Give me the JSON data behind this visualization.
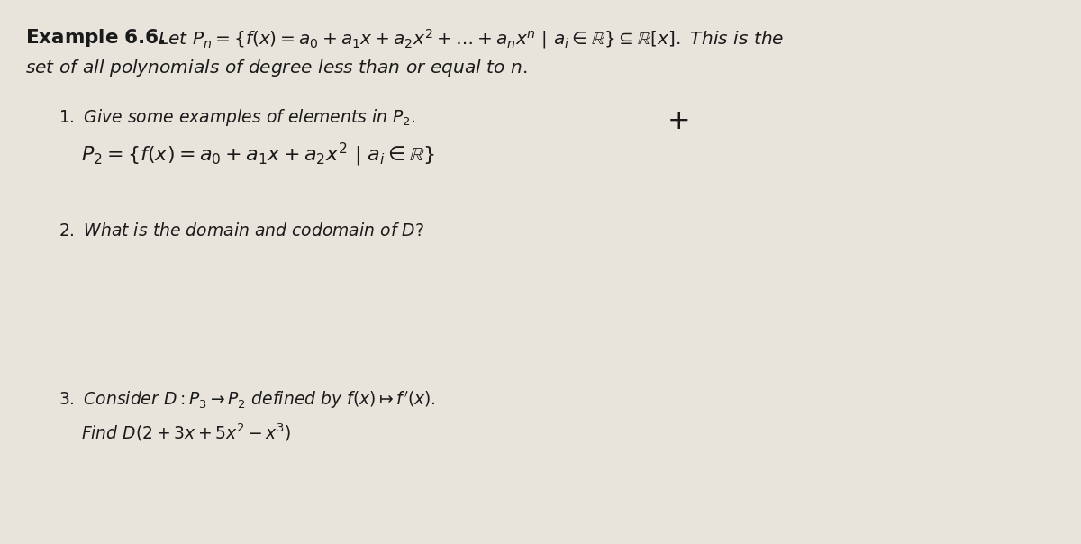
{
  "background_color": "#e8e4dc",
  "fig_width": 12.0,
  "fig_height": 6.04,
  "text_color": "#1a1a1a",
  "plus_sign": "+"
}
